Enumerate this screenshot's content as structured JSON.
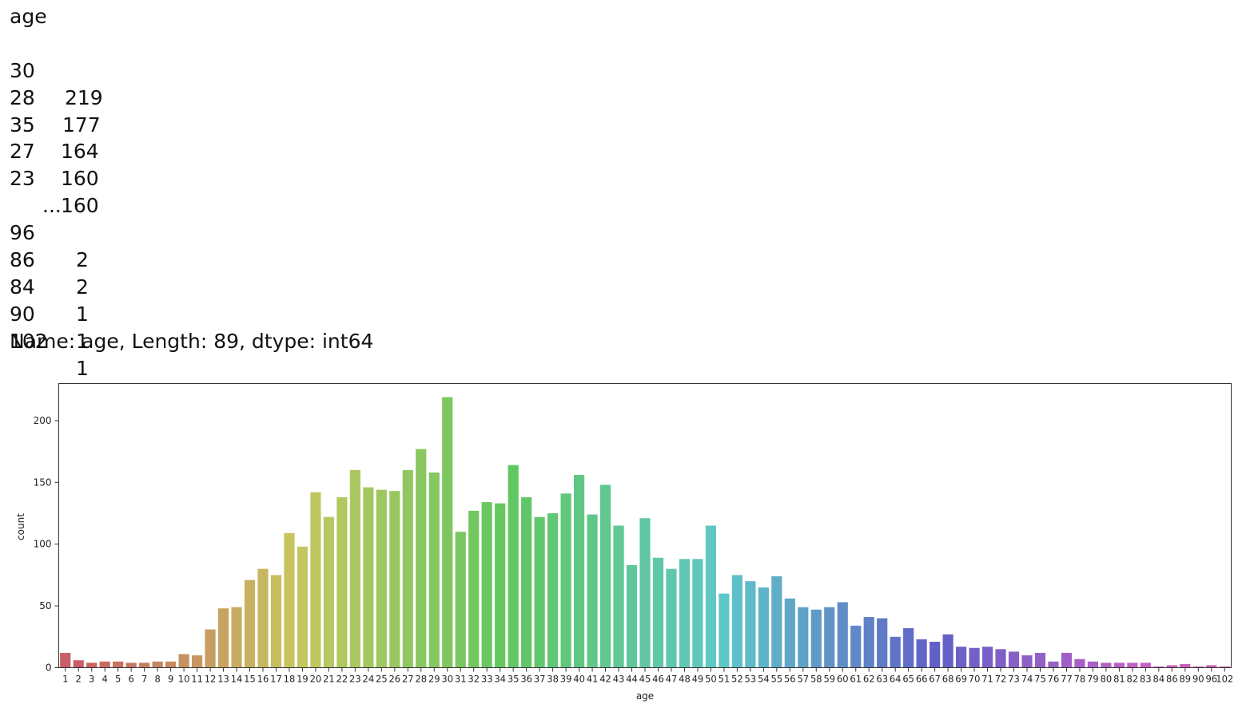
{
  "output": {
    "header": "age",
    "top_rows": [
      {
        "key": "30",
        "val": "219"
      },
      {
        "key": "28",
        "val": "177"
      },
      {
        "key": "35",
        "val": "164"
      },
      {
        "key": "27",
        "val": "160"
      },
      {
        "key": "23",
        "val": "160"
      }
    ],
    "ellipsis": "...",
    "bottom_rows": [
      {
        "key": "96",
        "val": "2"
      },
      {
        "key": "86",
        "val": "2"
      },
      {
        "key": "84",
        "val": "1"
      },
      {
        "key": "90",
        "val": "1"
      },
      {
        "key": "102",
        "val": "1"
      }
    ],
    "footer": "Name: age, Length: 89, dtype: int64"
  },
  "chart_data": {
    "type": "bar",
    "xlabel": "age",
    "ylabel": "count",
    "ylim": [
      0,
      230
    ],
    "yticks": [
      0,
      50,
      100,
      150,
      200
    ],
    "grid": false,
    "categories": [
      "1",
      "2",
      "3",
      "4",
      "5",
      "6",
      "7",
      "8",
      "9",
      "10",
      "11",
      "12",
      "13",
      "14",
      "15",
      "16",
      "17",
      "18",
      "19",
      "20",
      "21",
      "22",
      "23",
      "24",
      "25",
      "26",
      "27",
      "28",
      "29",
      "30",
      "31",
      "32",
      "33",
      "34",
      "35",
      "36",
      "37",
      "38",
      "39",
      "40",
      "41",
      "42",
      "43",
      "44",
      "45",
      "46",
      "47",
      "48",
      "49",
      "50",
      "51",
      "52",
      "53",
      "54",
      "55",
      "56",
      "57",
      "58",
      "59",
      "60",
      "61",
      "62",
      "63",
      "64",
      "65",
      "66",
      "67",
      "68",
      "69",
      "70",
      "71",
      "72",
      "73",
      "74",
      "75",
      "76",
      "77",
      "78",
      "79",
      "80",
      "81",
      "82",
      "83",
      "84",
      "86",
      "89",
      "90",
      "96",
      "102"
    ],
    "values": [
      12,
      6,
      4,
      5,
      5,
      4,
      4,
      5,
      5,
      11,
      10,
      31,
      48,
      49,
      71,
      80,
      75,
      109,
      98,
      142,
      122,
      138,
      160,
      146,
      144,
      143,
      160,
      177,
      158,
      219,
      110,
      127,
      134,
      133,
      164,
      138,
      122,
      125,
      141,
      156,
      124,
      148,
      115,
      83,
      121,
      89,
      80,
      88,
      88,
      115,
      60,
      75,
      70,
      65,
      74,
      56,
      49,
      47,
      49,
      53,
      34,
      41,
      40,
      25,
      32,
      23,
      21,
      27,
      17,
      16,
      17,
      15,
      13,
      10,
      12,
      5,
      12,
      7,
      5,
      4,
      4,
      4,
      4,
      1,
      2,
      3,
      1,
      2,
      1
    ]
  }
}
